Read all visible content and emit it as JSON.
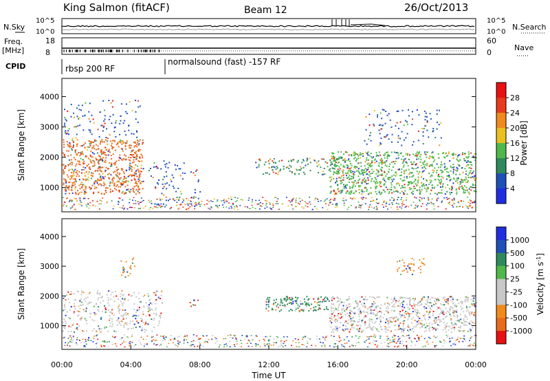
{
  "header": {
    "site": "King Salmon (fitACF)",
    "beam": "Beam 12",
    "date": "26/Oct/2013"
  },
  "summary": {
    "nsky_label": "N.Sky",
    "nsky_ticks": [
      "10^5",
      "10^0"
    ],
    "nsearch_label": "N.Search",
    "nsearch_ticks": [
      "10^5",
      "10^0"
    ],
    "freq_label_1": "Freq.",
    "freq_label_2": "[MHz]",
    "freq_ticks": [
      "18",
      "8"
    ],
    "nave_label": "Nave",
    "nave_ticks": [
      "60",
      "0"
    ],
    "cpid_label": "CPID",
    "cpid_segments": [
      {
        "label": "rbsp 200 RF",
        "start": 0,
        "end": 6
      },
      {
        "label": "normalsound (fast) -157 RF",
        "start": 6,
        "end": 24
      }
    ]
  },
  "chart_data": [
    {
      "type": "heatmap",
      "name": "power",
      "ylabel": "Slant Range [km]",
      "xlim": [
        0,
        24
      ],
      "ylim": [
        200,
        4600
      ],
      "yticks": [
        "1000",
        "2000",
        "3000",
        "4000"
      ],
      "colorbar": {
        "label": "Power [dB]",
        "ticks": [
          "4",
          "8",
          "12",
          "16",
          "20",
          "24",
          "28"
        ],
        "colors": [
          "#1f2ee0",
          "#1f4fb8",
          "#2e8a5a",
          "#4fb84a",
          "#e8c020",
          "#f08a1c",
          "#e83a1c",
          "#e81010"
        ]
      },
      "regions": [
        {
          "t0": 0.0,
          "t1": 4.7,
          "r0": 800,
          "r1": 2600,
          "intensity": "high",
          "color": "#e86a1c"
        },
        {
          "t0": 0.1,
          "t1": 4.5,
          "r0": 2600,
          "r1": 3900,
          "intensity": "low",
          "color": "#1f4fb8"
        },
        {
          "t0": 5.0,
          "t1": 8.0,
          "r0": 400,
          "r1": 1900,
          "intensity": "low",
          "color": "#1f4fb8"
        },
        {
          "t0": 11.2,
          "t1": 16.0,
          "r0": 1450,
          "r1": 2000,
          "intensity": "mid",
          "color": "#2e8a5a"
        },
        {
          "t0": 15.5,
          "t1": 24.0,
          "r0": 800,
          "r1": 2200,
          "intensity": "high",
          "color": "#4fb84a"
        },
        {
          "t0": 17.5,
          "t1": 22.0,
          "r0": 2400,
          "r1": 3600,
          "intensity": "low",
          "color": "#1f4fb8"
        }
      ]
    },
    {
      "type": "heatmap",
      "name": "velocity",
      "ylabel": "Slant Range [km]",
      "xlabel": "Time UT",
      "xlim": [
        0,
        24
      ],
      "ylim": [
        200,
        4600
      ],
      "yticks": [
        "1000",
        "2000",
        "3000",
        "4000"
      ],
      "xticks": [
        "00:00",
        "04:00",
        "08:00",
        "12:00",
        "16:00",
        "20:00",
        "00:00"
      ],
      "colorbar": {
        "label": "Velocity [m s",
        "label_sup": "-1",
        "label_end": "]",
        "ticks": [
          "1000",
          "500",
          "100",
          "25",
          "-25",
          "-100",
          "-500",
          "-1000"
        ],
        "colors": [
          "#1f2ee0",
          "#1f4fb8",
          "#2e8a5a",
          "#4fb84a",
          "#c8c8c8",
          "#c8c8c8",
          "#f08a1c",
          "#e86a1c",
          "#e81010"
        ]
      },
      "regions": [
        {
          "t0": 0.0,
          "t1": 5.8,
          "r0": 800,
          "r1": 2200,
          "intensity": "mid",
          "color": "#c8c8c8"
        },
        {
          "t0": 3.4,
          "t1": 4.2,
          "r0": 2600,
          "r1": 3300,
          "intensity": "mid",
          "color": "#f08a1c"
        },
        {
          "t0": 7.3,
          "t1": 8.0,
          "r0": 1650,
          "r1": 1900,
          "intensity": "mid",
          "color": "#e83a1c"
        },
        {
          "t0": 11.8,
          "t1": 15.5,
          "r0": 1500,
          "r1": 2000,
          "intensity": "high",
          "color": "#2e8a5a"
        },
        {
          "t0": 15.5,
          "t1": 24.0,
          "r0": 800,
          "r1": 2000,
          "intensity": "high",
          "color": "#c8c8c8"
        },
        {
          "t0": 19.4,
          "t1": 21.0,
          "r0": 2700,
          "r1": 3300,
          "intensity": "mid",
          "color": "#f08a1c"
        }
      ]
    }
  ]
}
